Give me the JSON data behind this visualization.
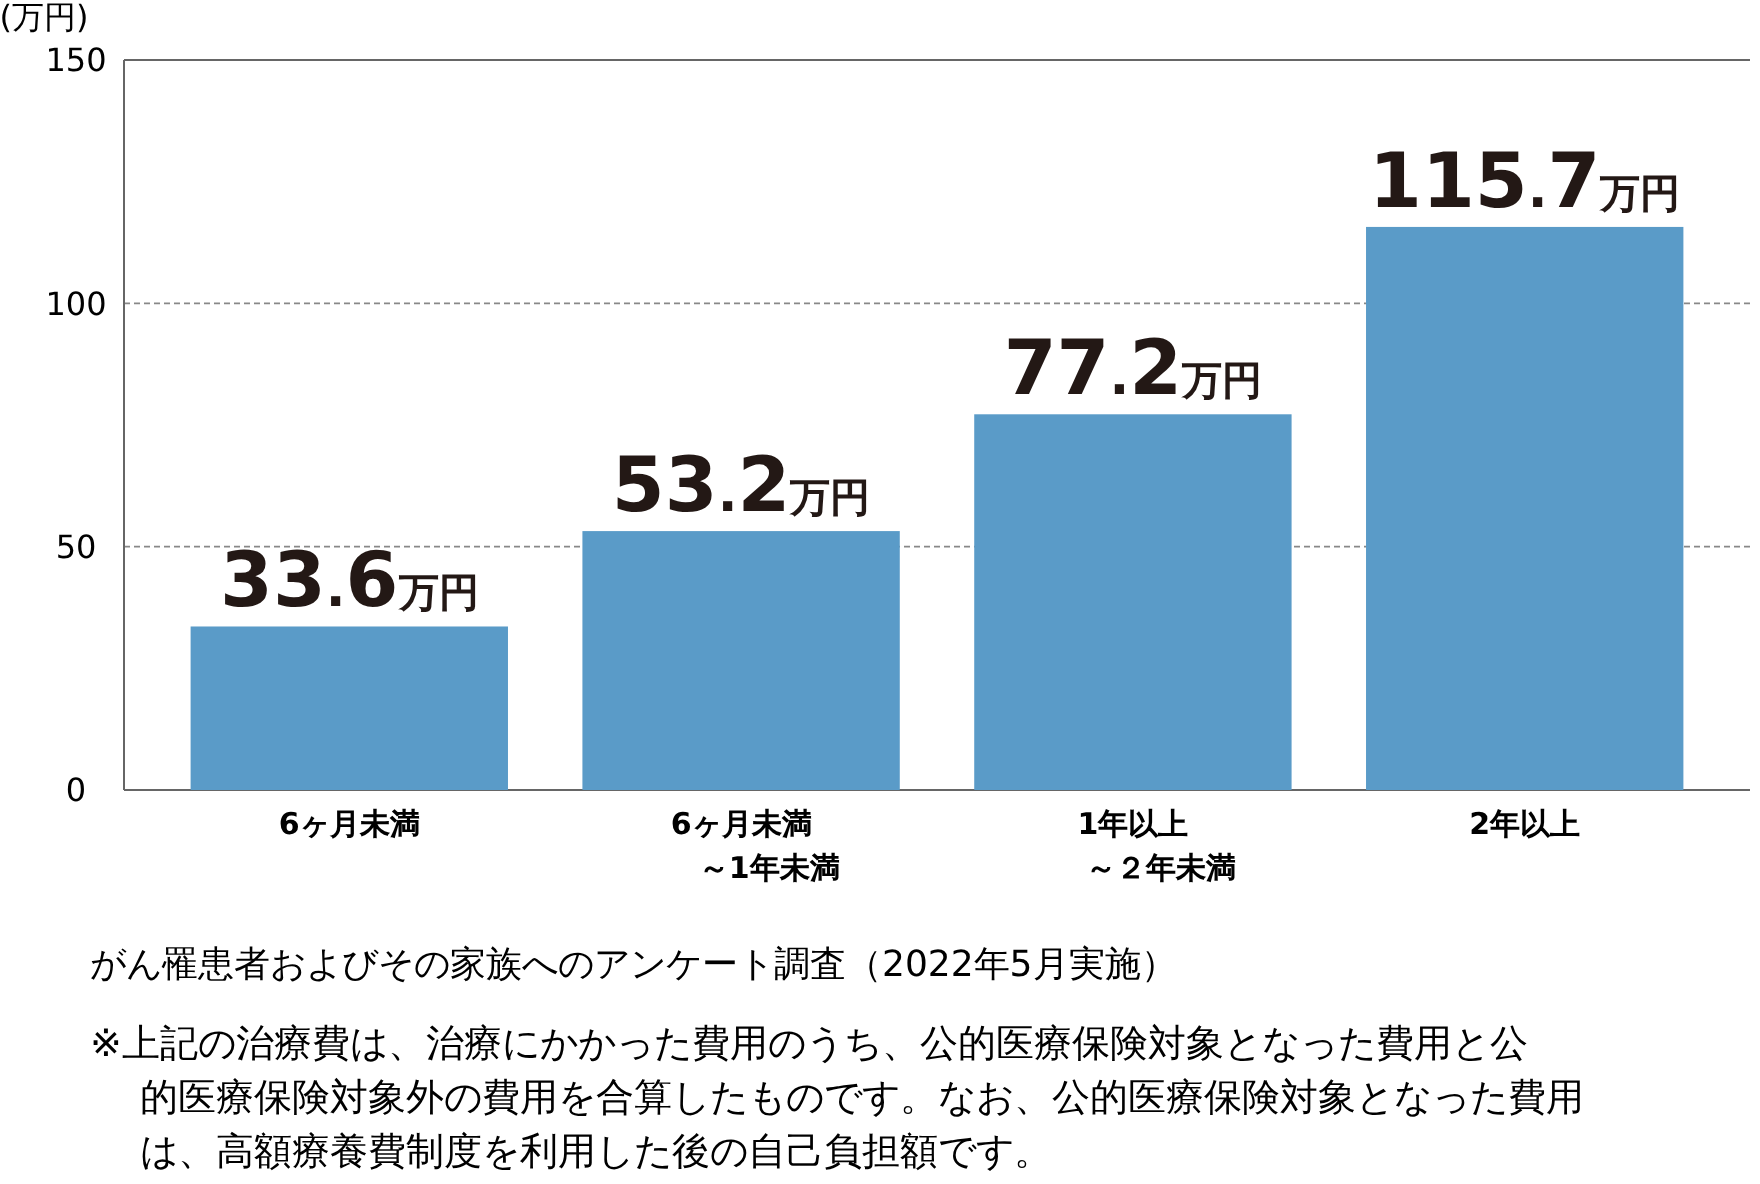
{
  "chart_data": {
    "type": "bar",
    "ylabel": "(万円)",
    "categories": [
      "6ヶ月未満",
      "6ヶ月未満～1年未満",
      "1年以上～２年未満",
      "2年以上"
    ],
    "values": [
      33.6,
      53.2,
      77.2,
      115.7
    ],
    "color": "#5a9bc8",
    "value_labels": [
      "33.6万円",
      "53.2万円",
      "77.2万円",
      "115.7万円"
    ],
    "ylim": [
      0,
      150
    ],
    "yticks": [
      0,
      50,
      100,
      150
    ],
    "grid": "y",
    "annotations": [
      "がん罹患者およびその家族へのアンケート調査（2022年5月実施）",
      "※上記の治療費は、治療にかかった費用のうち、公的医療保険対象となった費用と公的医療保険対象外の費用を合算したものです。なお、公的医療保険対象となった費用は、高額療養費制度を利用した後の自己負担額です。"
    ]
  }
}
